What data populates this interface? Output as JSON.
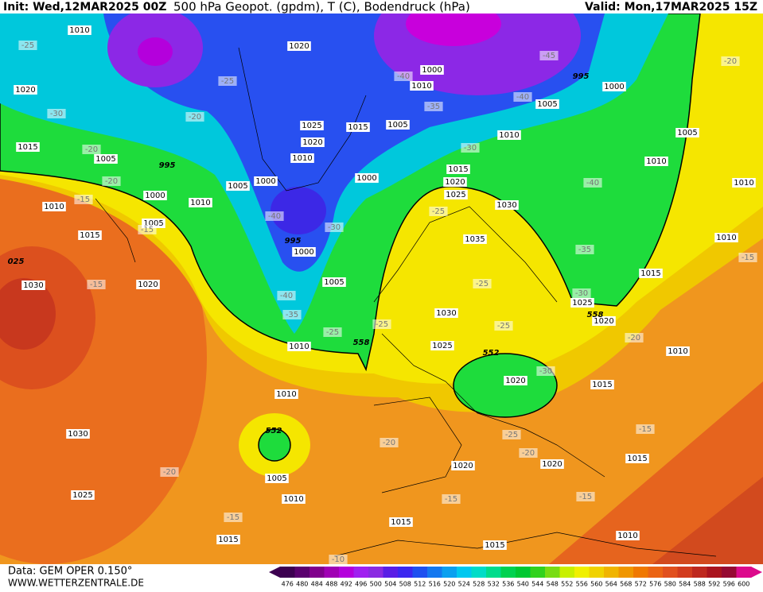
{
  "header": {
    "init": "Init: Wed,12MAR2025 00Z",
    "title": "500 hPa Geopot. (gpdm), T (C), Bodendruck (hPa)",
    "valid": "Valid: Mon,17MAR2025 15Z"
  },
  "map_labels": [
    "1010",
    "1020",
    "1015",
    "1005",
    "995",
    "1000",
    "1010",
    "1015",
    "1005",
    "1010",
    "1020",
    "1030",
    "025",
    "1020",
    "1025",
    "1020",
    "1010",
    "1000",
    "1005",
    "995",
    "1000",
    "1005",
    "1010",
    "1015",
    "1005",
    "1000",
    "1000",
    "1010",
    "995",
    "1000",
    "1005",
    "1010",
    "1015",
    "1020",
    "1025",
    "1030",
    "1035",
    "1030",
    "1025",
    "1020",
    "1015",
    "1020",
    "1025",
    "1015",
    "1010",
    "1005",
    "1010",
    "1010",
    "1010",
    "1010",
    "1005",
    "1010",
    "1030",
    "1025",
    "1015",
    "1020",
    "1020",
    "1015",
    "1015",
    "1015",
    "1010",
    "-25",
    "-30",
    "-20",
    "-25",
    "-20",
    "-20",
    "-15",
    "-15",
    "-15",
    "-40",
    "-30",
    "-40",
    "-35",
    "-25",
    "-40",
    "-35",
    "-45",
    "-40",
    "-30",
    "-25",
    "-25",
    "-25",
    "-25",
    "-30",
    "-35",
    "-40",
    "-20",
    "-20",
    "-15",
    "-30",
    "-25",
    "-20",
    "-20",
    "-20",
    "-15",
    "-15",
    "-15",
    "-15",
    "-10",
    "558",
    "552",
    "552",
    "558"
  ],
  "footer": {
    "data": "Data: GEM OPER 0.150°",
    "site": "WWW.WETTERZENTRALE.DE"
  },
  "colorbar": {
    "levels": [
      476,
      480,
      484,
      488,
      492,
      496,
      500,
      504,
      508,
      512,
      516,
      520,
      524,
      528,
      532,
      536,
      540,
      544,
      548,
      552,
      556,
      560,
      564,
      568,
      572,
      576,
      580,
      584,
      588,
      592,
      596,
      600
    ],
    "colors": [
      "#3c0050",
      "#5a006e",
      "#80008c",
      "#a000b4",
      "#b400dc",
      "#a020f0",
      "#8a2be2",
      "#5a1ee6",
      "#3c28f0",
      "#1e50f0",
      "#1478f0",
      "#0aa0f0",
      "#00c8f0",
      "#00dcc8",
      "#00dc8c",
      "#00d250",
      "#00c832",
      "#32d21e",
      "#78dc14",
      "#c8f000",
      "#f0f000",
      "#f0d200",
      "#f0b400",
      "#f09600",
      "#f07800",
      "#eb6414",
      "#e1501e",
      "#d23c1e",
      "#be281e",
      "#aa141e",
      "#960a32",
      "#dc0a8c"
    ]
  }
}
